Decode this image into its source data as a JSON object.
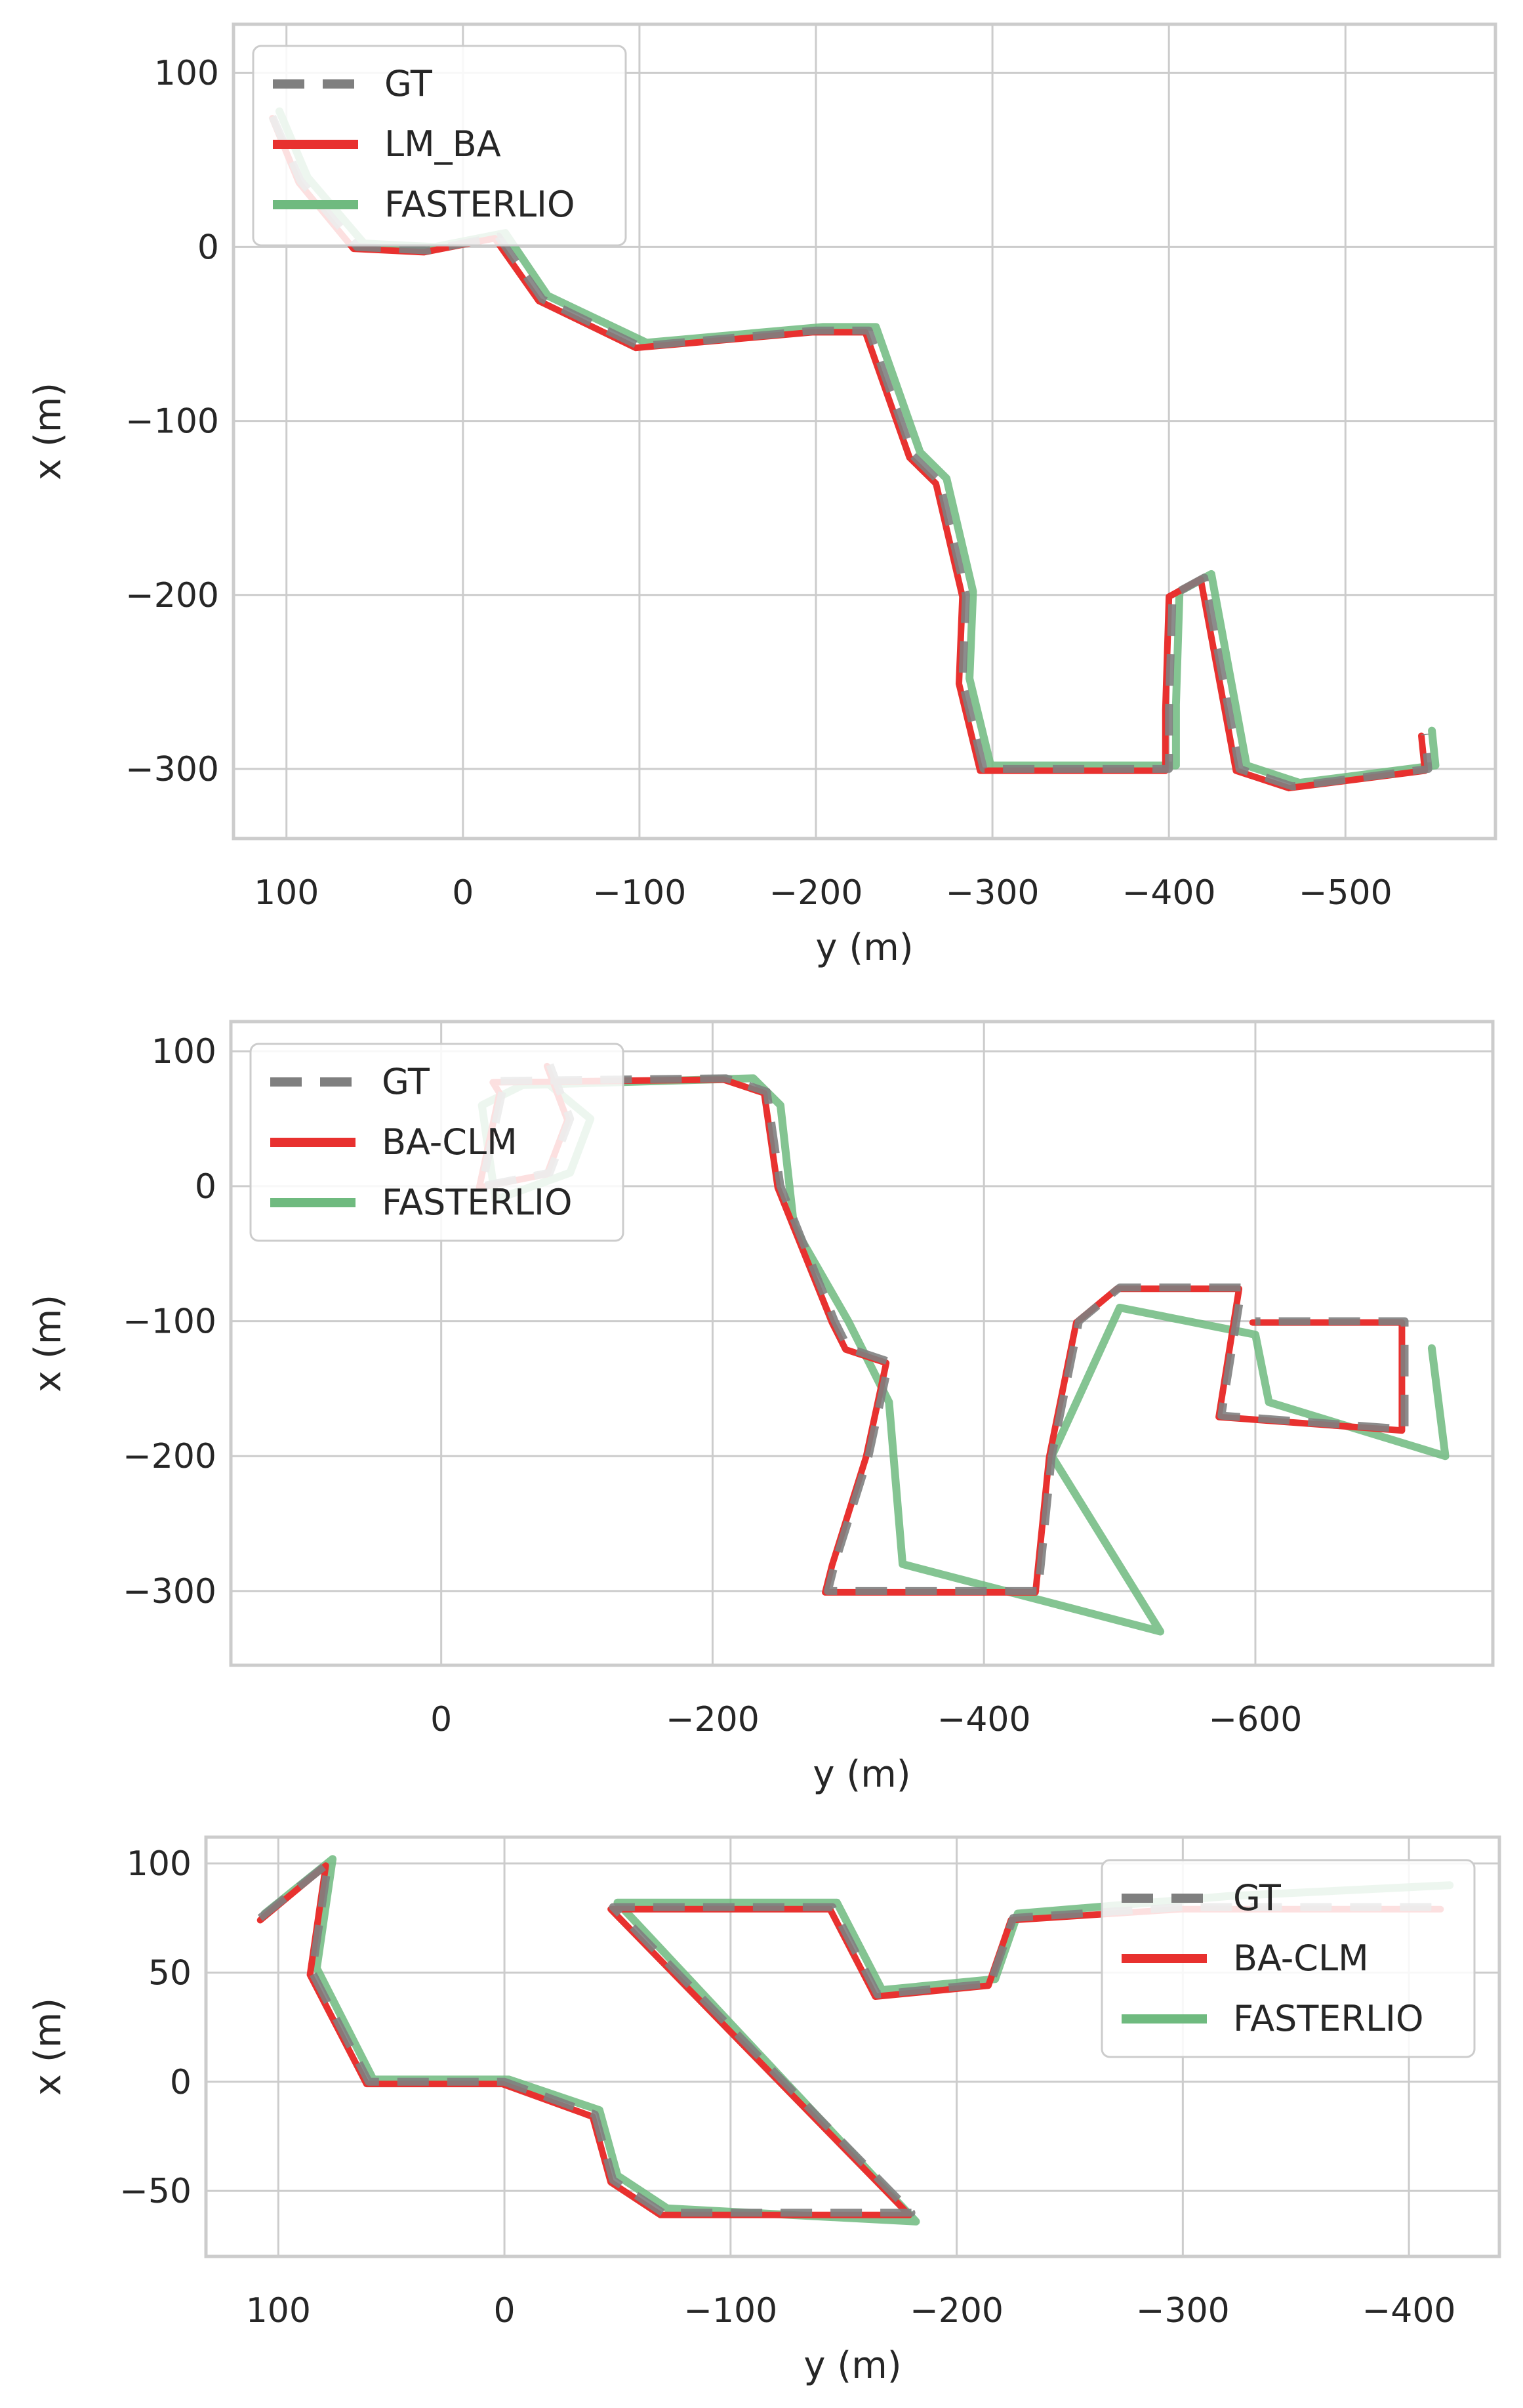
{
  "colors": {
    "gt": "#7f7f7f",
    "ours": "#e8312f",
    "fasterlio": "#6fba7f",
    "grid": "#cccccc",
    "frame": "#cccccc",
    "background": "#ffffff"
  },
  "chart_data": [
    {
      "type": "line",
      "title": "",
      "xlabel": "y (m)",
      "ylabel": "x (m)",
      "xlim": [
        130,
        -585
      ],
      "ylim": [
        128,
        -340
      ],
      "xticks": [
        100,
        0,
        -100,
        -200,
        -300,
        -400,
        -500
      ],
      "yticks": [
        -300,
        -200,
        -100,
        0,
        100
      ],
      "grid": true,
      "legend_position": "top-left",
      "series": [
        {
          "name": "GT",
          "style": "dashed",
          "color": "#7f7f7f",
          "points": [
            [
              108,
              75
            ],
            [
              92,
              38
            ],
            [
              60,
              0
            ],
            [
              20,
              -2
            ],
            [
              -20,
              6
            ],
            [
              -45,
              -30
            ],
            [
              -100,
              -57
            ],
            [
              -200,
              -48
            ],
            [
              -230,
              -48
            ],
            [
              -255,
              -120
            ],
            [
              -270,
              -135
            ],
            [
              -285,
              -200
            ],
            [
              -283,
              -250
            ],
            [
              -295,
              -300
            ],
            [
              -400,
              -300
            ],
            [
              -400,
              -265
            ],
            [
              -402,
              -200
            ],
            [
              -420,
              -190
            ],
            [
              -440,
              -300
            ],
            [
              -470,
              -310
            ],
            [
              -547,
              -300
            ],
            [
              -545,
              -280
            ]
          ]
        },
        {
          "name": "LM_BA",
          "style": "solid",
          "color": "#e8312f",
          "points": [
            [
              108,
              74
            ],
            [
              93,
              37
            ],
            [
              62,
              -1
            ],
            [
              22,
              -3
            ],
            [
              -18,
              5
            ],
            [
              -43,
              -31
            ],
            [
              -98,
              -58
            ],
            [
              -198,
              -49
            ],
            [
              -228,
              -49
            ],
            [
              -253,
              -121
            ],
            [
              -268,
              -136
            ],
            [
              -283,
              -201
            ],
            [
              -281,
              -251
            ],
            [
              -293,
              -301
            ],
            [
              -398,
              -301
            ],
            [
              -398,
              -266
            ],
            [
              -400,
              -201
            ],
            [
              -418,
              -191
            ],
            [
              -438,
              -301
            ],
            [
              -468,
              -311
            ],
            [
              -545,
              -301
            ],
            [
              -543,
              -281
            ]
          ]
        },
        {
          "name": "FASTERLIO",
          "style": "solid",
          "color": "#6fba7f",
          "points": [
            [
              104,
              78
            ],
            [
              88,
              40
            ],
            [
              56,
              2
            ],
            [
              16,
              0
            ],
            [
              -24,
              8
            ],
            [
              -48,
              -28
            ],
            [
              -104,
              -55
            ],
            [
              -204,
              -46
            ],
            [
              -234,
              -46
            ],
            [
              -259,
              -118
            ],
            [
              -274,
              -133
            ],
            [
              -289,
              -198
            ],
            [
              -287,
              -248
            ],
            [
              -299,
              -298
            ],
            [
              -404,
              -298
            ],
            [
              -404,
              -263
            ],
            [
              -406,
              -198
            ],
            [
              -424,
              -188
            ],
            [
              -444,
              -298
            ],
            [
              -474,
              -308
            ],
            [
              -551,
              -298
            ],
            [
              -549,
              -278
            ]
          ]
        }
      ]
    },
    {
      "type": "line",
      "title": "",
      "xlabel": "y (m)",
      "ylabel": "x (m)",
      "xlim": [
        155,
        -775
      ],
      "ylim": [
        122,
        -355
      ],
      "xticks": [
        0,
        -200,
        -400,
        -600
      ],
      "yticks": [
        -300,
        -200,
        -100,
        0,
        100
      ],
      "grid": true,
      "legend_position": "top-left",
      "series": [
        {
          "name": "GT",
          "style": "dashed",
          "color": "#7f7f7f",
          "points": [
            [
              -80,
              90
            ],
            [
              -95,
              50
            ],
            [
              -80,
              10
            ],
            [
              -30,
              0
            ],
            [
              -45,
              70
            ],
            [
              -40,
              78
            ],
            [
              -210,
              80
            ],
            [
              -240,
              70
            ],
            [
              -250,
              0
            ],
            [
              -270,
              -50
            ],
            [
              -290,
              -100
            ],
            [
              -300,
              -120
            ],
            [
              -330,
              -130
            ],
            [
              -315,
              -200
            ],
            [
              -290,
              -280
            ],
            [
              -285,
              -300
            ],
            [
              -440,
              -300
            ],
            [
              -450,
              -200
            ],
            [
              -470,
              -100
            ],
            [
              -500,
              -75
            ],
            [
              -590,
              -75
            ],
            [
              -575,
              -170
            ],
            [
              -710,
              -180
            ],
            [
              -710,
              -100
            ],
            [
              -600,
              -100
            ]
          ]
        },
        {
          "name": "BA-CLM",
          "style": "solid",
          "color": "#e8312f",
          "points": [
            [
              -78,
              89
            ],
            [
              -93,
              49
            ],
            [
              -78,
              9
            ],
            [
              -28,
              -1
            ],
            [
              -43,
              69
            ],
            [
              -38,
              77
            ],
            [
              -208,
              79
            ],
            [
              -238,
              69
            ],
            [
              -248,
              -1
            ],
            [
              -268,
              -51
            ],
            [
              -288,
              -101
            ],
            [
              -298,
              -121
            ],
            [
              -328,
              -131
            ],
            [
              -313,
              -201
            ],
            [
              -288,
              -281
            ],
            [
              -283,
              -301
            ],
            [
              -438,
              -301
            ],
            [
              -448,
              -201
            ],
            [
              -468,
              -101
            ],
            [
              -498,
              -76
            ],
            [
              -588,
              -76
            ],
            [
              -573,
              -171
            ],
            [
              -708,
              -181
            ],
            [
              -708,
              -101
            ],
            [
              -598,
              -101
            ]
          ]
        },
        {
          "name": "FASTERLIO",
          "style": "solid",
          "color": "#6fba7f",
          "points": [
            [
              -80,
              75
            ],
            [
              -110,
              50
            ],
            [
              -95,
              10
            ],
            [
              -40,
              -10
            ],
            [
              -30,
              60
            ],
            [
              -60,
              75
            ],
            [
              -230,
              80
            ],
            [
              -250,
              60
            ],
            [
              -260,
              -30
            ],
            [
              -300,
              -100
            ],
            [
              -330,
              -160
            ],
            [
              -340,
              -280
            ],
            [
              -530,
              -330
            ],
            [
              -450,
              -200
            ],
            [
              -500,
              -90
            ],
            [
              -600,
              -110
            ],
            [
              -610,
              -160
            ],
            [
              -740,
              -200
            ],
            [
              -730,
              -120
            ]
          ]
        }
      ]
    },
    {
      "type": "line",
      "title": "",
      "xlabel": "y (m)",
      "ylabel": "x (m)",
      "xlim": [
        132,
        -440
      ],
      "ylim": [
        112,
        -80
      ],
      "xticks": [
        100,
        0,
        -100,
        -200,
        -300,
        -400
      ],
      "yticks": [
        -50,
        0,
        50,
        100
      ],
      "grid": true,
      "legend_position": "top-right",
      "series": [
        {
          "name": "GT",
          "style": "dashed",
          "color": "#7f7f7f",
          "points": [
            [
              108,
              75
            ],
            [
              78,
              100
            ],
            [
              85,
              50
            ],
            [
              60,
              0
            ],
            [
              0,
              0
            ],
            [
              -40,
              -15
            ],
            [
              -48,
              -45
            ],
            [
              -70,
              -60
            ],
            [
              -180,
              -60
            ],
            [
              -48,
              80
            ],
            [
              -145,
              80
            ],
            [
              -165,
              40
            ],
            [
              -215,
              45
            ],
            [
              -225,
              75
            ],
            [
              -300,
              80
            ],
            [
              -415,
              80
            ]
          ]
        },
        {
          "name": "BA-CLM",
          "style": "solid",
          "color": "#e8312f",
          "points": [
            [
              108,
              74
            ],
            [
              79,
              99
            ],
            [
              86,
              49
            ],
            [
              61,
              -1
            ],
            [
              1,
              -1
            ],
            [
              -39,
              -16
            ],
            [
              -47,
              -46
            ],
            [
              -69,
              -61
            ],
            [
              -179,
              -61
            ],
            [
              -47,
              79
            ],
            [
              -144,
              79
            ],
            [
              -164,
              39
            ],
            [
              -214,
              44
            ],
            [
              -224,
              74
            ],
            [
              -299,
              79
            ],
            [
              -414,
              79
            ]
          ]
        },
        {
          "name": "FASTERLIO",
          "style": "solid",
          "color": "#6fba7f",
          "points": [
            [
              106,
              77
            ],
            [
              76,
              102
            ],
            [
              83,
              52
            ],
            [
              58,
              1
            ],
            [
              -2,
              1
            ],
            [
              -42,
              -13
            ],
            [
              -50,
              -43
            ],
            [
              -72,
              -58
            ],
            [
              -182,
              -64
            ],
            [
              -50,
              82
            ],
            [
              -147,
              82
            ],
            [
              -167,
              42
            ],
            [
              -217,
              47
            ],
            [
              -227,
              77
            ],
            [
              -320,
              85
            ],
            [
              -418,
              90
            ]
          ]
        }
      ]
    }
  ]
}
